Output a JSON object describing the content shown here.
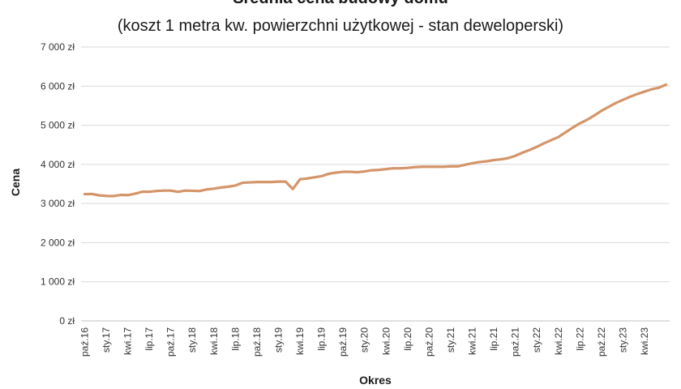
{
  "chart_data": {
    "type": "line",
    "title": "Średnia cena budowy domu",
    "subtitle": "(koszt 1 metra kw. powierzchni użytkowej - stan deweloperski)",
    "xlabel": "Okres",
    "ylabel": "Cena",
    "ylim": [
      0,
      7000
    ],
    "yticks": [
      0,
      1000,
      2000,
      3000,
      4000,
      5000,
      6000,
      7000
    ],
    "ytick_labels": [
      "0 zł",
      "1 000 zł",
      "2 000 zł",
      "3 000 zł",
      "4 000 zł",
      "5 000 zł",
      "6 000 zł",
      "7 000 zł"
    ],
    "grid": true,
    "legend": "none",
    "line_color": "#d4956a",
    "x_tick_labels": [
      "paź.16",
      "sty.17",
      "kwi.17",
      "lip.17",
      "paź.17",
      "sty.18",
      "kwi.18",
      "lip.18",
      "paź.18",
      "sty.19",
      "kwi.19",
      "lip.19",
      "paź.19",
      "sty.20",
      "kwi.20",
      "lip.20",
      "paź.20",
      "sty.21",
      "kwi.21",
      "lip.21",
      "paź.21",
      "sty.22",
      "kwi.22",
      "lip.22",
      "paź.22",
      "sty.23",
      "kwi.23"
    ],
    "x": [
      "2016-10",
      "2016-11",
      "2016-12",
      "2017-01",
      "2017-02",
      "2017-03",
      "2017-04",
      "2017-05",
      "2017-06",
      "2017-07",
      "2017-08",
      "2017-09",
      "2017-10",
      "2017-11",
      "2017-12",
      "2018-01",
      "2018-02",
      "2018-03",
      "2018-04",
      "2018-05",
      "2018-06",
      "2018-07",
      "2018-08",
      "2018-09",
      "2018-10",
      "2018-11",
      "2018-12",
      "2019-01",
      "2019-02",
      "2019-03",
      "2019-04",
      "2019-05",
      "2019-06",
      "2019-07",
      "2019-08",
      "2019-09",
      "2019-10",
      "2019-11",
      "2019-12",
      "2020-01",
      "2020-02",
      "2020-03",
      "2020-04",
      "2020-05",
      "2020-06",
      "2020-07",
      "2020-08",
      "2020-09",
      "2020-10",
      "2020-11",
      "2020-12",
      "2021-01",
      "2021-02",
      "2021-03",
      "2021-04",
      "2021-05",
      "2021-06",
      "2021-07",
      "2021-08",
      "2021-09",
      "2021-10",
      "2021-11",
      "2021-12",
      "2022-01",
      "2022-02",
      "2022-03",
      "2022-04",
      "2022-05",
      "2022-06",
      "2022-07",
      "2022-08",
      "2022-09",
      "2022-10",
      "2022-11",
      "2022-12",
      "2023-01",
      "2023-02",
      "2023-03",
      "2023-04",
      "2023-05",
      "2023-06",
      "2023-07"
    ],
    "values": [
      3240,
      3245,
      3210,
      3195,
      3190,
      3220,
      3215,
      3250,
      3300,
      3300,
      3320,
      3330,
      3330,
      3300,
      3330,
      3325,
      3320,
      3360,
      3380,
      3410,
      3430,
      3460,
      3530,
      3540,
      3550,
      3550,
      3550,
      3560,
      3560,
      3370,
      3620,
      3640,
      3670,
      3700,
      3760,
      3790,
      3810,
      3810,
      3800,
      3820,
      3850,
      3860,
      3880,
      3900,
      3900,
      3910,
      3930,
      3940,
      3940,
      3940,
      3940,
      3950,
      3950,
      3990,
      4030,
      4060,
      4080,
      4110,
      4130,
      4160,
      4220,
      4300,
      4370,
      4450,
      4540,
      4620,
      4700,
      4820,
      4940,
      5050,
      5140,
      5250,
      5370,
      5470,
      5570,
      5650,
      5730,
      5800,
      5860,
      5920,
      5960,
      6040
    ]
  }
}
